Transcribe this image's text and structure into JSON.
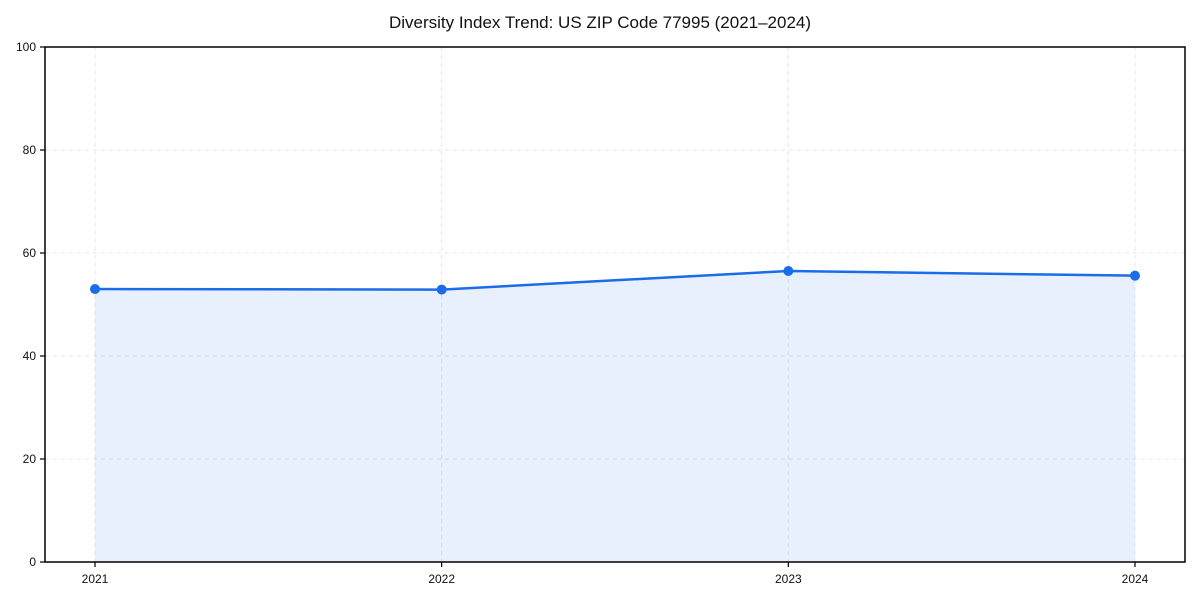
{
  "chart_data": {
    "type": "area",
    "title": "Diversity Index Trend: US ZIP Code 77995 (2021–2024)",
    "categories": [
      "2021",
      "2022",
      "2023",
      "2024"
    ],
    "series": [
      {
        "name": "Diversity Index",
        "values": [
          53.0,
          52.9,
          56.5,
          55.6
        ]
      }
    ],
    "xlabel": "",
    "ylabel": "",
    "ylim": [
      0,
      100
    ],
    "yticks": [
      0,
      20,
      40,
      60,
      80,
      100
    ],
    "grid": true,
    "grid_style": "dashed",
    "legend_position": "none",
    "marker": "circle",
    "colors": {
      "line": "#1a6ce8",
      "marker": "#1a6ce8",
      "fill": "rgba(26,108,232,0.10)",
      "grid": "#e7e7e7",
      "axis": "#000000",
      "tick_text": "#111111",
      "background": "#ffffff"
    }
  }
}
